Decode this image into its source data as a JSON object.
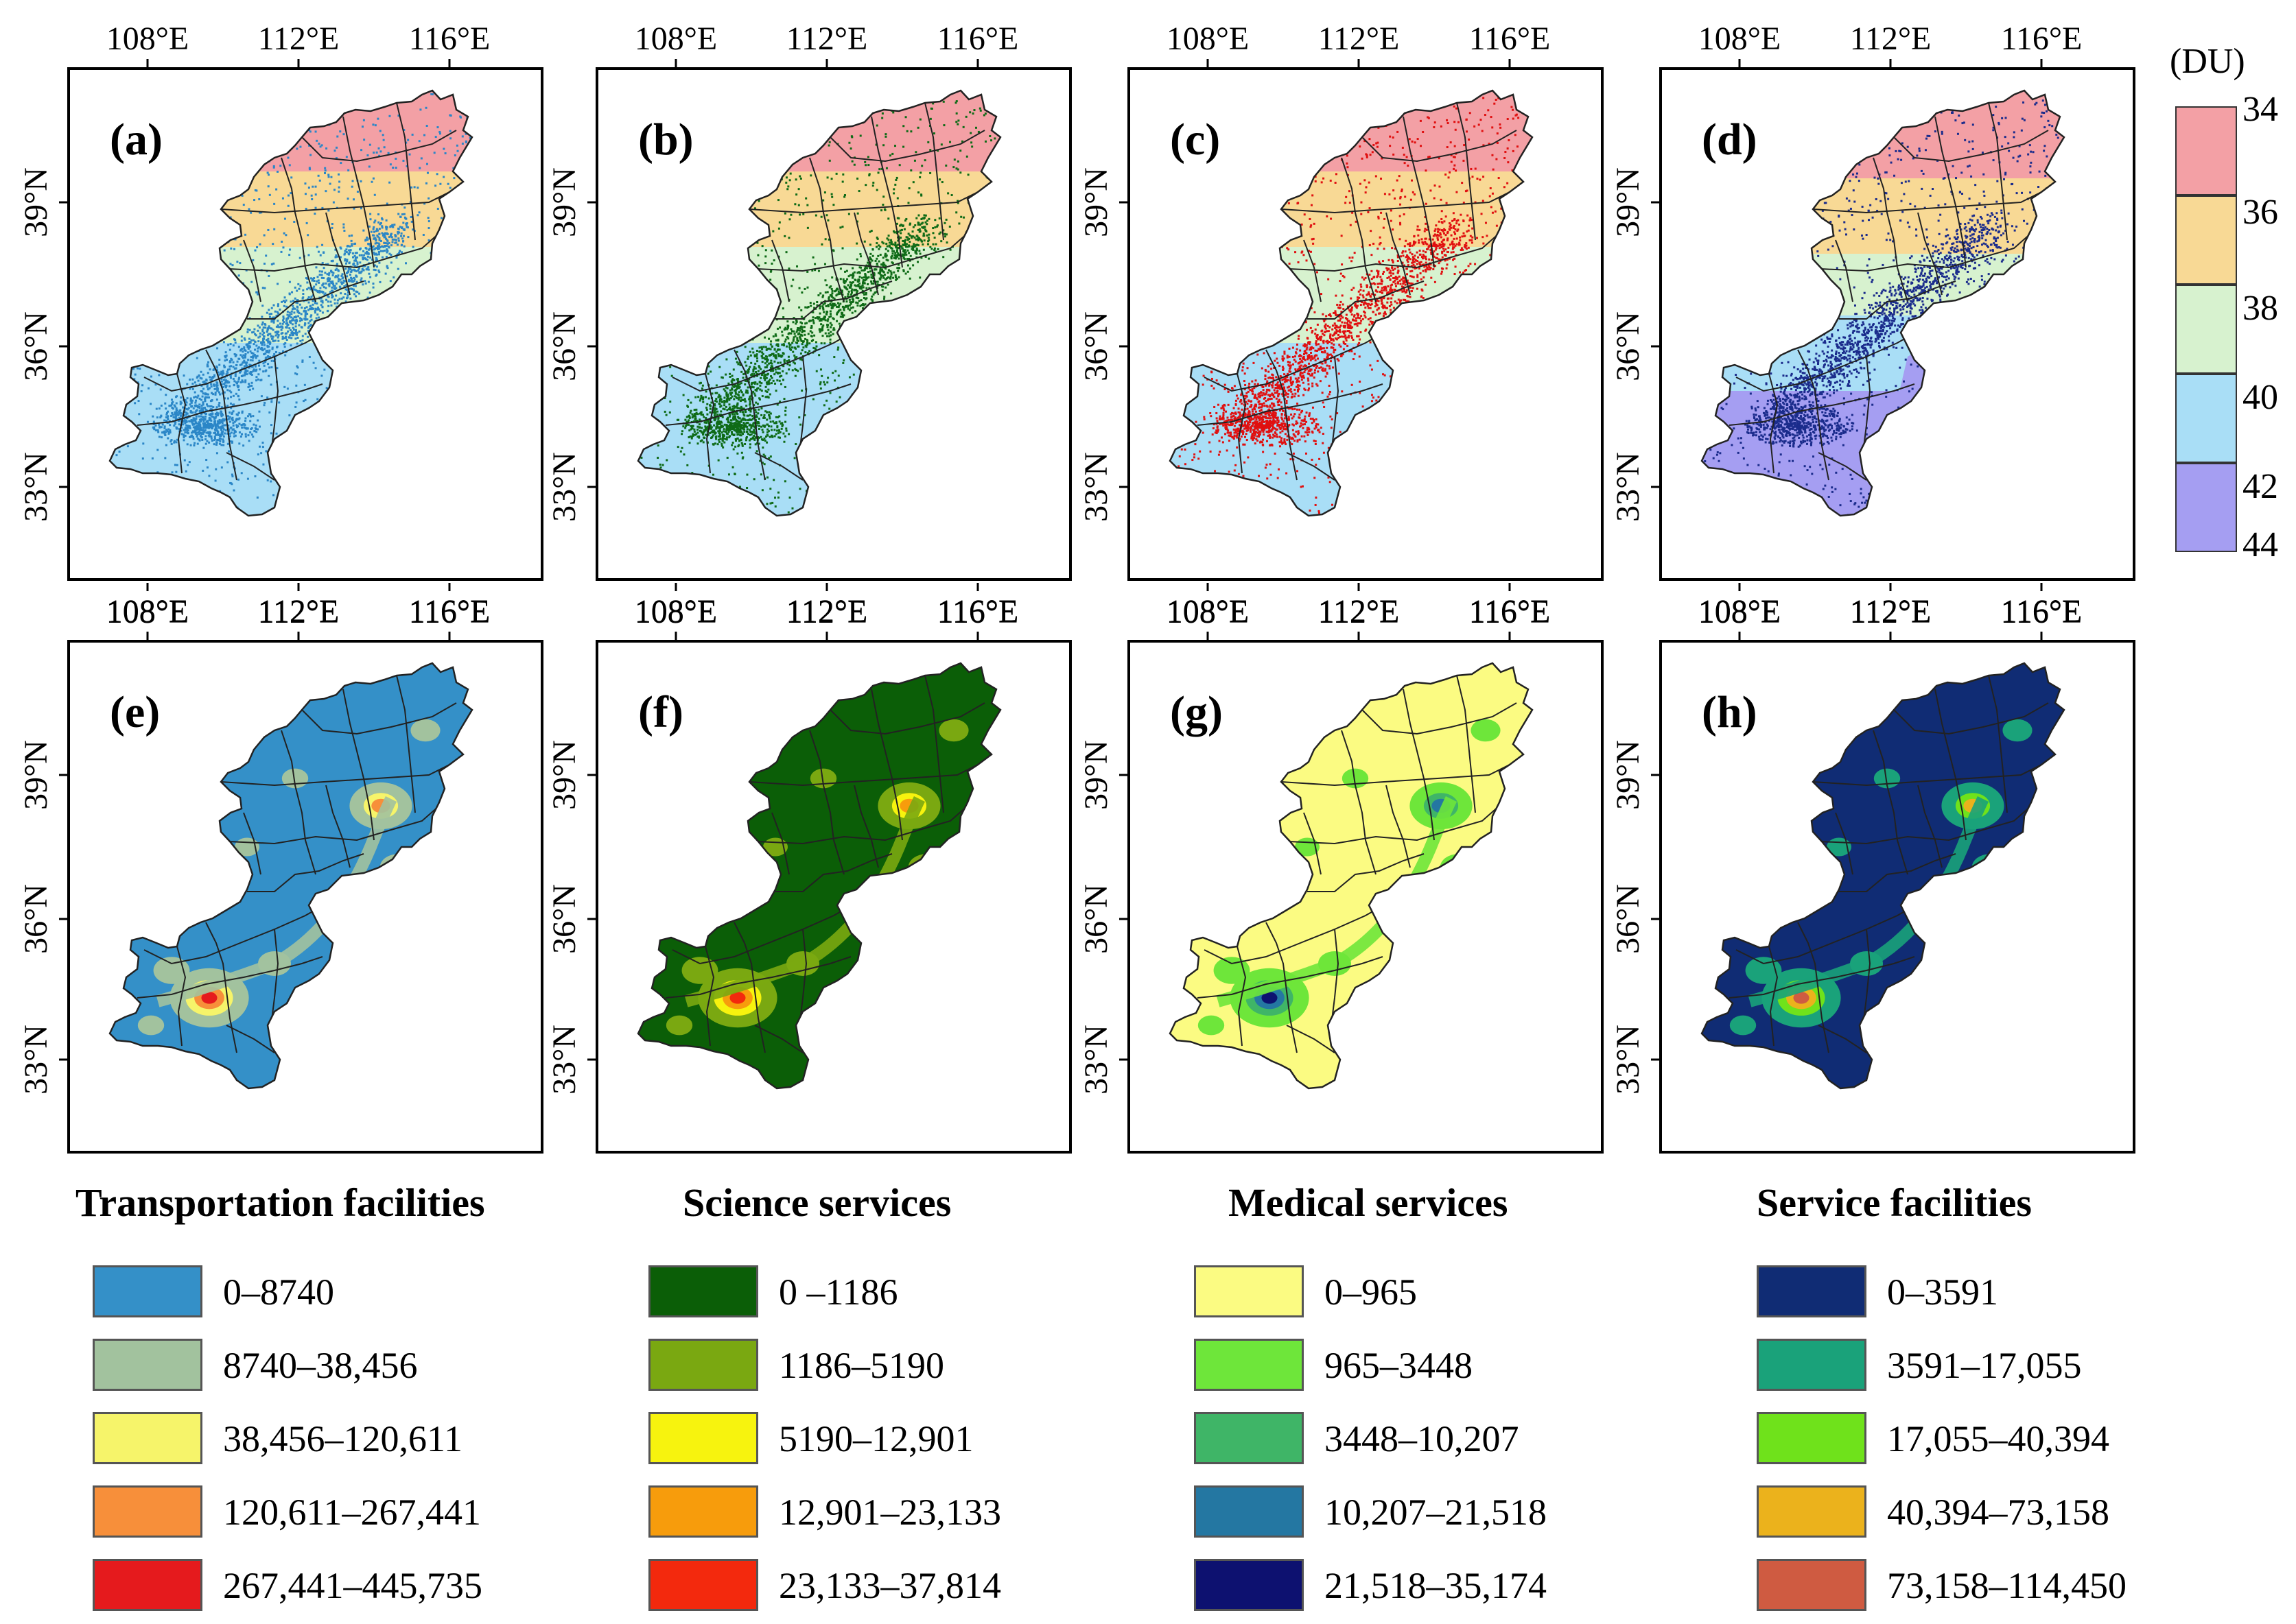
{
  "axes": {
    "lon_ticks": [
      "108°E",
      "112°E",
      "116°E"
    ],
    "lat_ticks": [
      "39°N",
      "36°N",
      "33°N"
    ]
  },
  "panels": [
    {
      "label": "(a)",
      "type": "ozone_points",
      "point_color": "#2b86c7"
    },
    {
      "label": "(b)",
      "type": "ozone_points",
      "point_color": "#0f6b17"
    },
    {
      "label": "(c)",
      "type": "ozone_points",
      "point_color": "#e01010"
    },
    {
      "label": "(d)",
      "type": "ozone_points",
      "point_color": "#1b2c8c"
    },
    {
      "label": "(e)",
      "type": "density"
    },
    {
      "label": "(f)",
      "type": "density"
    },
    {
      "label": "(g)",
      "type": "density"
    },
    {
      "label": "(h)",
      "type": "density"
    }
  ],
  "ozone_legend": {
    "unit": "(DU)",
    "ticks": [
      "34",
      "36",
      "38",
      "40",
      "42",
      "44"
    ],
    "colors": [
      "#f3a0a5",
      "#f8d995",
      "#d7f2cf",
      "#a9def6",
      "#a59ef2"
    ]
  },
  "density_legends": [
    {
      "title": "Transportation facilities",
      "items": [
        {
          "label": "0–8740",
          "color": "#3490c8"
        },
        {
          "label": "8740–38,456",
          "color": "#a2c29e"
        },
        {
          "label": "38,456–120,611",
          "color": "#f6f46a"
        },
        {
          "label": "120,611–267,441",
          "color": "#f78f3a"
        },
        {
          "label": "267,441–445,735",
          "color": "#e51a1d"
        }
      ]
    },
    {
      "title": "Science services",
      "items": [
        {
          "label": "0 –1186",
          "color": "#0b5e07"
        },
        {
          "label": "1186–5190",
          "color": "#7aa811"
        },
        {
          "label": "5190–12,901",
          "color": "#f7f30e"
        },
        {
          "label": "12,901–23,133",
          "color": "#f79c0c"
        },
        {
          "label": "23,133–37,814",
          "color": "#f3290d"
        }
      ]
    },
    {
      "title": "Medical services",
      "items": [
        {
          "label": "0–965",
          "color": "#fbfb82"
        },
        {
          "label": "965–3448",
          "color": "#6ee63a"
        },
        {
          "label": "3448–10,207",
          "color": "#3fb567"
        },
        {
          "label": "10,207–21,518",
          "color": "#2477a2"
        },
        {
          "label": "21,518–35,174",
          "color": "#0d1170"
        }
      ]
    },
    {
      "title": "Service facilities",
      "items": [
        {
          "label": "0–3591",
          "color": "#102c74"
        },
        {
          "label": "3591–17,055",
          "color": "#1aa27a"
        },
        {
          "label": "17,055–40,394",
          "color": "#6fe21b"
        },
        {
          "label": "40,394–73,158",
          "color": "#ebb21c"
        },
        {
          "label": "73,158–114,450",
          "color": "#cf5b41"
        }
      ]
    }
  ]
}
